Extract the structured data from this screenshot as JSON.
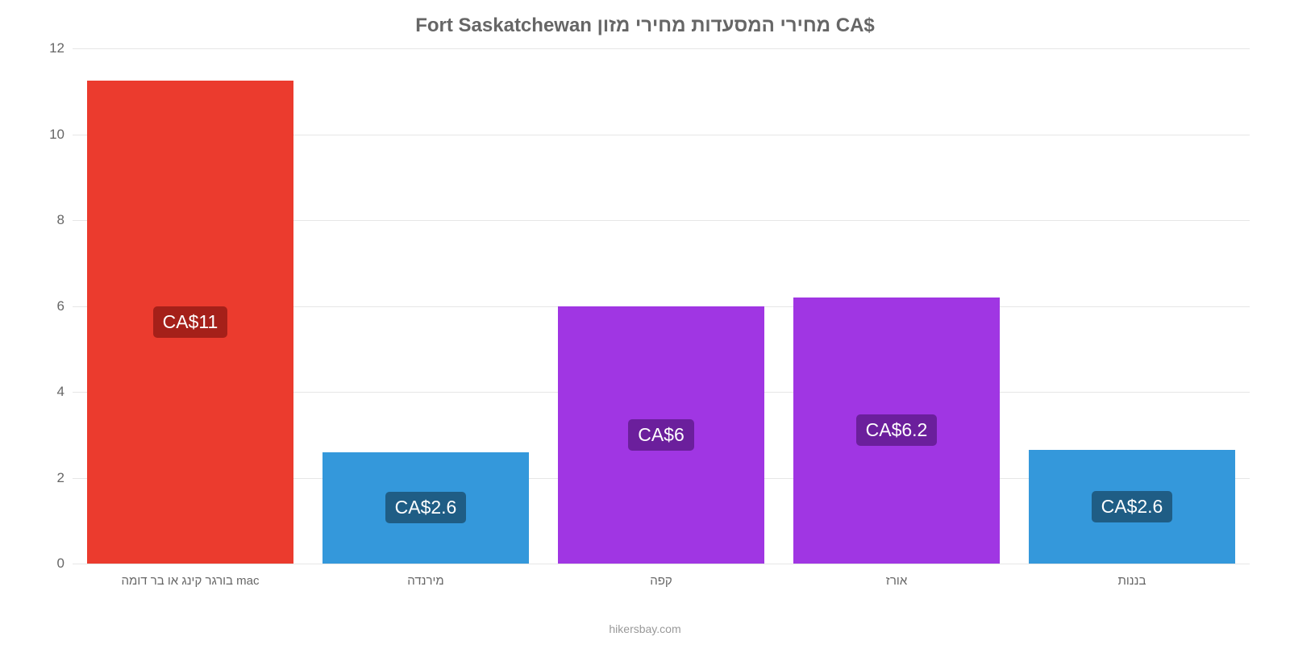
{
  "title": "Fort Saskatchewan מחירי המסעדות מחירי מזון CA$",
  "title_color": "#666666",
  "title_fontsize": 24,
  "type": "bar",
  "ylim": [
    0,
    12
  ],
  "ytick_step": 2,
  "yticks": [
    0,
    2,
    4,
    6,
    8,
    10,
    12
  ],
  "grid_color": "#e6e6e6",
  "axis_color": "#808080",
  "tick_label_color": "#666666",
  "tick_label_fontsize": 17,
  "background_color": "#ffffff",
  "bar_width": 0.88,
  "value_label_fontsize": 23,
  "categories": [
    {
      "label": "בורגר קינג או בר דומה mac",
      "value": 11.25,
      "display": "CA$11",
      "color": "#eb3b2e",
      "label_bg": "#a52019"
    },
    {
      "label": "מירנדה",
      "value": 2.6,
      "display": "CA$2.6",
      "color": "#3498db",
      "label_bg": "#1f5d85"
    },
    {
      "label": "קפה",
      "value": 6.0,
      "display": "CA$6",
      "color": "#a036e3",
      "label_bg": "#6b1f9c"
    },
    {
      "label": "אורז",
      "value": 6.2,
      "display": "CA$6.2",
      "color": "#a036e3",
      "label_bg": "#6b1f9c"
    },
    {
      "label": "בננות",
      "value": 2.65,
      "display": "CA$2.6",
      "color": "#3498db",
      "label_bg": "#1f5d85"
    }
  ],
  "attribution": "hikersbay.com",
  "attribution_color": "#999999"
}
